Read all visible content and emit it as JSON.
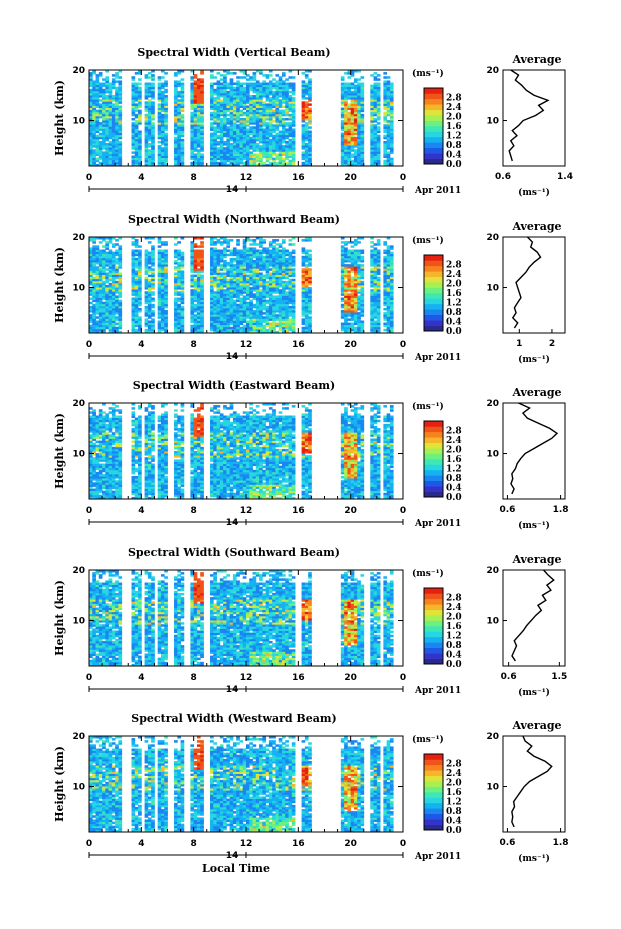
{
  "colors": {
    "colorbar": [
      "#2a2a8c",
      "#3333cc",
      "#1f57e6",
      "#1a86f0",
      "#15b2f2",
      "#27d6e0",
      "#3ee8b4",
      "#6cf080",
      "#a6f052",
      "#dfe33a",
      "#f7b52c",
      "#f7831f",
      "#ef5418",
      "#e52212"
    ],
    "background": "#ffffff"
  },
  "shared": {
    "ylabel": "Height (km)",
    "date_label": "Apr 2011",
    "day_label": "14",
    "unit_label": "(ms⁻¹)",
    "avg_title": "Average",
    "xlabel": "Local Time"
  },
  "chart_data": [
    {
      "type": "heatmap",
      "title": "Spectral Width (Vertical Beam)",
      "x_ticks": [
        "0",
        "4",
        "8",
        "12",
        "16",
        "20",
        "0"
      ],
      "y_ticks": [
        "20",
        "10"
      ],
      "xlim": [
        0,
        24
      ],
      "ylim": [
        1,
        20
      ],
      "colorbar_ticks": [
        "2.8",
        "2.4",
        "2.0",
        "1.6",
        "1.2",
        "0.8",
        "0.4",
        "0.0"
      ],
      "profile": {
        "type": "line",
        "title": "Average",
        "x_ticks": [
          "0.6",
          "1.4"
        ],
        "xlim": [
          0.6,
          1.4
        ],
        "y_ticks": [
          "20",
          "10"
        ],
        "ylim": [
          1,
          20
        ],
        "height": [
          2,
          3,
          4,
          5,
          6,
          7,
          8,
          9,
          10,
          11,
          12,
          13,
          14,
          15,
          16,
          17,
          18,
          19,
          20
        ],
        "value": [
          0.72,
          0.7,
          0.68,
          0.74,
          0.7,
          0.78,
          0.72,
          0.8,
          0.86,
          1.02,
          1.12,
          1.06,
          1.18,
          1.0,
          0.9,
          0.84,
          0.76,
          0.8,
          0.7
        ]
      },
      "xlabel": ""
    },
    {
      "type": "heatmap",
      "title": "Spectral Width (Northward Beam)",
      "x_ticks": [
        "0",
        "4",
        "8",
        "12",
        "16",
        "20",
        "0"
      ],
      "y_ticks": [
        "20",
        "10"
      ],
      "xlim": [
        0,
        24
      ],
      "ylim": [
        1,
        20
      ],
      "colorbar_ticks": [
        "2.8",
        "2.4",
        "2.0",
        "1.6",
        "1.2",
        "0.8",
        "0.4",
        "0.0"
      ],
      "profile": {
        "type": "line",
        "title": "Average",
        "x_ticks": [
          "1",
          "2"
        ],
        "xlim": [
          0.5,
          2.4
        ],
        "y_ticks": [
          "20",
          "10"
        ],
        "ylim": [
          1,
          20
        ],
        "height": [
          2,
          3,
          4,
          5,
          6,
          7,
          8,
          9,
          10,
          11,
          12,
          13,
          14,
          15,
          16,
          17,
          18,
          19,
          20
        ],
        "value": [
          0.85,
          0.95,
          0.8,
          0.9,
          0.85,
          0.95,
          1.05,
          1.0,
          0.95,
          0.9,
          1.05,
          1.2,
          1.3,
          1.45,
          1.65,
          1.55,
          1.35,
          1.4,
          1.25
        ]
      },
      "xlabel": ""
    },
    {
      "type": "heatmap",
      "title": "Spectral Width (Eastward Beam)",
      "x_ticks": [
        "0",
        "4",
        "8",
        "12",
        "16",
        "20",
        "0"
      ],
      "y_ticks": [
        "20",
        "10"
      ],
      "xlim": [
        0,
        24
      ],
      "ylim": [
        1,
        20
      ],
      "colorbar_ticks": [
        "2.8",
        "2.4",
        "2.0",
        "1.6",
        "1.2",
        "0.8",
        "0.4",
        "0.0"
      ],
      "profile": {
        "type": "line",
        "title": "Average",
        "x_ticks": [
          "0.6",
          "1.8"
        ],
        "xlim": [
          0.5,
          1.9
        ],
        "y_ticks": [
          "20",
          "10"
        ],
        "ylim": [
          1,
          20
        ],
        "height": [
          2,
          3,
          4,
          5,
          6,
          7,
          8,
          9,
          10,
          11,
          12,
          13,
          14,
          15,
          16,
          17,
          18,
          19,
          20
        ],
        "value": [
          0.7,
          0.75,
          0.68,
          0.72,
          0.7,
          0.78,
          0.82,
          0.9,
          1.0,
          1.2,
          1.4,
          1.6,
          1.72,
          1.55,
          1.3,
          1.05,
          0.95,
          1.1,
          0.85
        ]
      },
      "xlabel": ""
    },
    {
      "type": "heatmap",
      "title": "Spectral Width (Southward Beam)",
      "x_ticks": [
        "0",
        "4",
        "8",
        "12",
        "16",
        "20",
        "0"
      ],
      "y_ticks": [
        "20",
        "10"
      ],
      "xlim": [
        0,
        24
      ],
      "ylim": [
        1,
        20
      ],
      "colorbar_ticks": [
        "2.8",
        "2.4",
        "2.0",
        "1.6",
        "1.2",
        "0.8",
        "0.4",
        "0.0"
      ],
      "profile": {
        "type": "line",
        "title": "Average",
        "x_ticks": [
          "0.6",
          "1.5"
        ],
        "xlim": [
          0.5,
          1.6
        ],
        "y_ticks": [
          "20",
          "10"
        ],
        "ylim": [
          1,
          20
        ],
        "height": [
          2,
          3,
          4,
          5,
          6,
          7,
          8,
          9,
          10,
          11,
          12,
          13,
          14,
          15,
          16,
          17,
          18,
          19,
          20
        ],
        "value": [
          0.72,
          0.66,
          0.7,
          0.74,
          0.7,
          0.78,
          0.86,
          0.92,
          1.0,
          1.08,
          1.18,
          1.12,
          1.26,
          1.2,
          1.35,
          1.28,
          1.4,
          1.3,
          1.22
        ]
      },
      "xlabel": ""
    },
    {
      "type": "heatmap",
      "title": "Spectral Width (Westward Beam)",
      "x_ticks": [
        "0",
        "4",
        "8",
        "12",
        "16",
        "20",
        "0"
      ],
      "y_ticks": [
        "20",
        "10"
      ],
      "xlim": [
        0,
        24
      ],
      "ylim": [
        1,
        20
      ],
      "colorbar_ticks": [
        "2.8",
        "2.4",
        "2.0",
        "1.6",
        "1.2",
        "0.8",
        "0.4",
        "0.0"
      ],
      "profile": {
        "type": "line",
        "title": "Average",
        "x_ticks": [
          "0.6",
          "1.8"
        ],
        "xlim": [
          0.5,
          1.9
        ],
        "y_ticks": [
          "20",
          "10"
        ],
        "ylim": [
          1,
          20
        ],
        "height": [
          2,
          3,
          4,
          5,
          6,
          7,
          8,
          9,
          10,
          11,
          12,
          13,
          14,
          15,
          16,
          17,
          18,
          19,
          20
        ],
        "value": [
          0.75,
          0.7,
          0.72,
          0.7,
          0.76,
          0.74,
          0.82,
          0.9,
          0.98,
          1.1,
          1.3,
          1.5,
          1.6,
          1.45,
          1.2,
          1.05,
          1.15,
          1.0,
          0.95
        ]
      },
      "xlabel": "Local Time"
    }
  ]
}
